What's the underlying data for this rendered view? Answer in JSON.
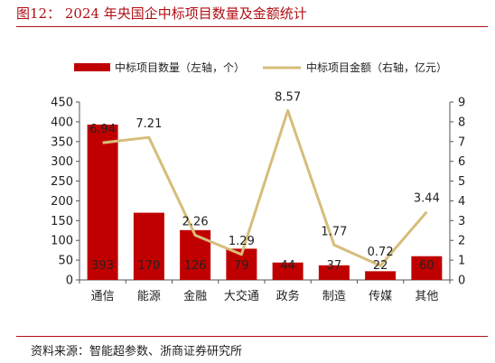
{
  "figure": {
    "title": "图12：  2024 年央国企中标项目数量及金额统计",
    "source": "资料来源：智能超参数、浙商证券研究所"
  },
  "colors": {
    "bar": "#c00000",
    "line": "#d6bd7a",
    "title": "#b00f14",
    "axis": "#555555"
  },
  "chart_data": {
    "type": "bar",
    "title": "",
    "categories": [
      "通信",
      "能源",
      "金融",
      "大交通",
      "政务",
      "制造",
      "传媒",
      "其他"
    ],
    "series": [
      {
        "name": "中标项目数量（左轴，个）",
        "type": "bar",
        "axis": "left",
        "values": [
          393,
          170,
          126,
          79,
          44,
          37,
          22,
          60
        ]
      },
      {
        "name": "中标项目金额（右轴，亿元）",
        "type": "line",
        "axis": "right",
        "values": [
          6.94,
          7.21,
          2.26,
          1.29,
          8.57,
          1.77,
          0.72,
          3.44
        ]
      }
    ],
    "y_left": {
      "min": 0,
      "max": 450,
      "ticks": [
        0,
        50,
        100,
        150,
        200,
        250,
        300,
        350,
        400,
        450
      ]
    },
    "y_right": {
      "min": 0,
      "max": 9,
      "ticks": [
        0,
        1,
        2,
        3,
        4,
        5,
        6,
        7,
        8,
        9
      ]
    },
    "grid": false,
    "legend_position": "top"
  }
}
